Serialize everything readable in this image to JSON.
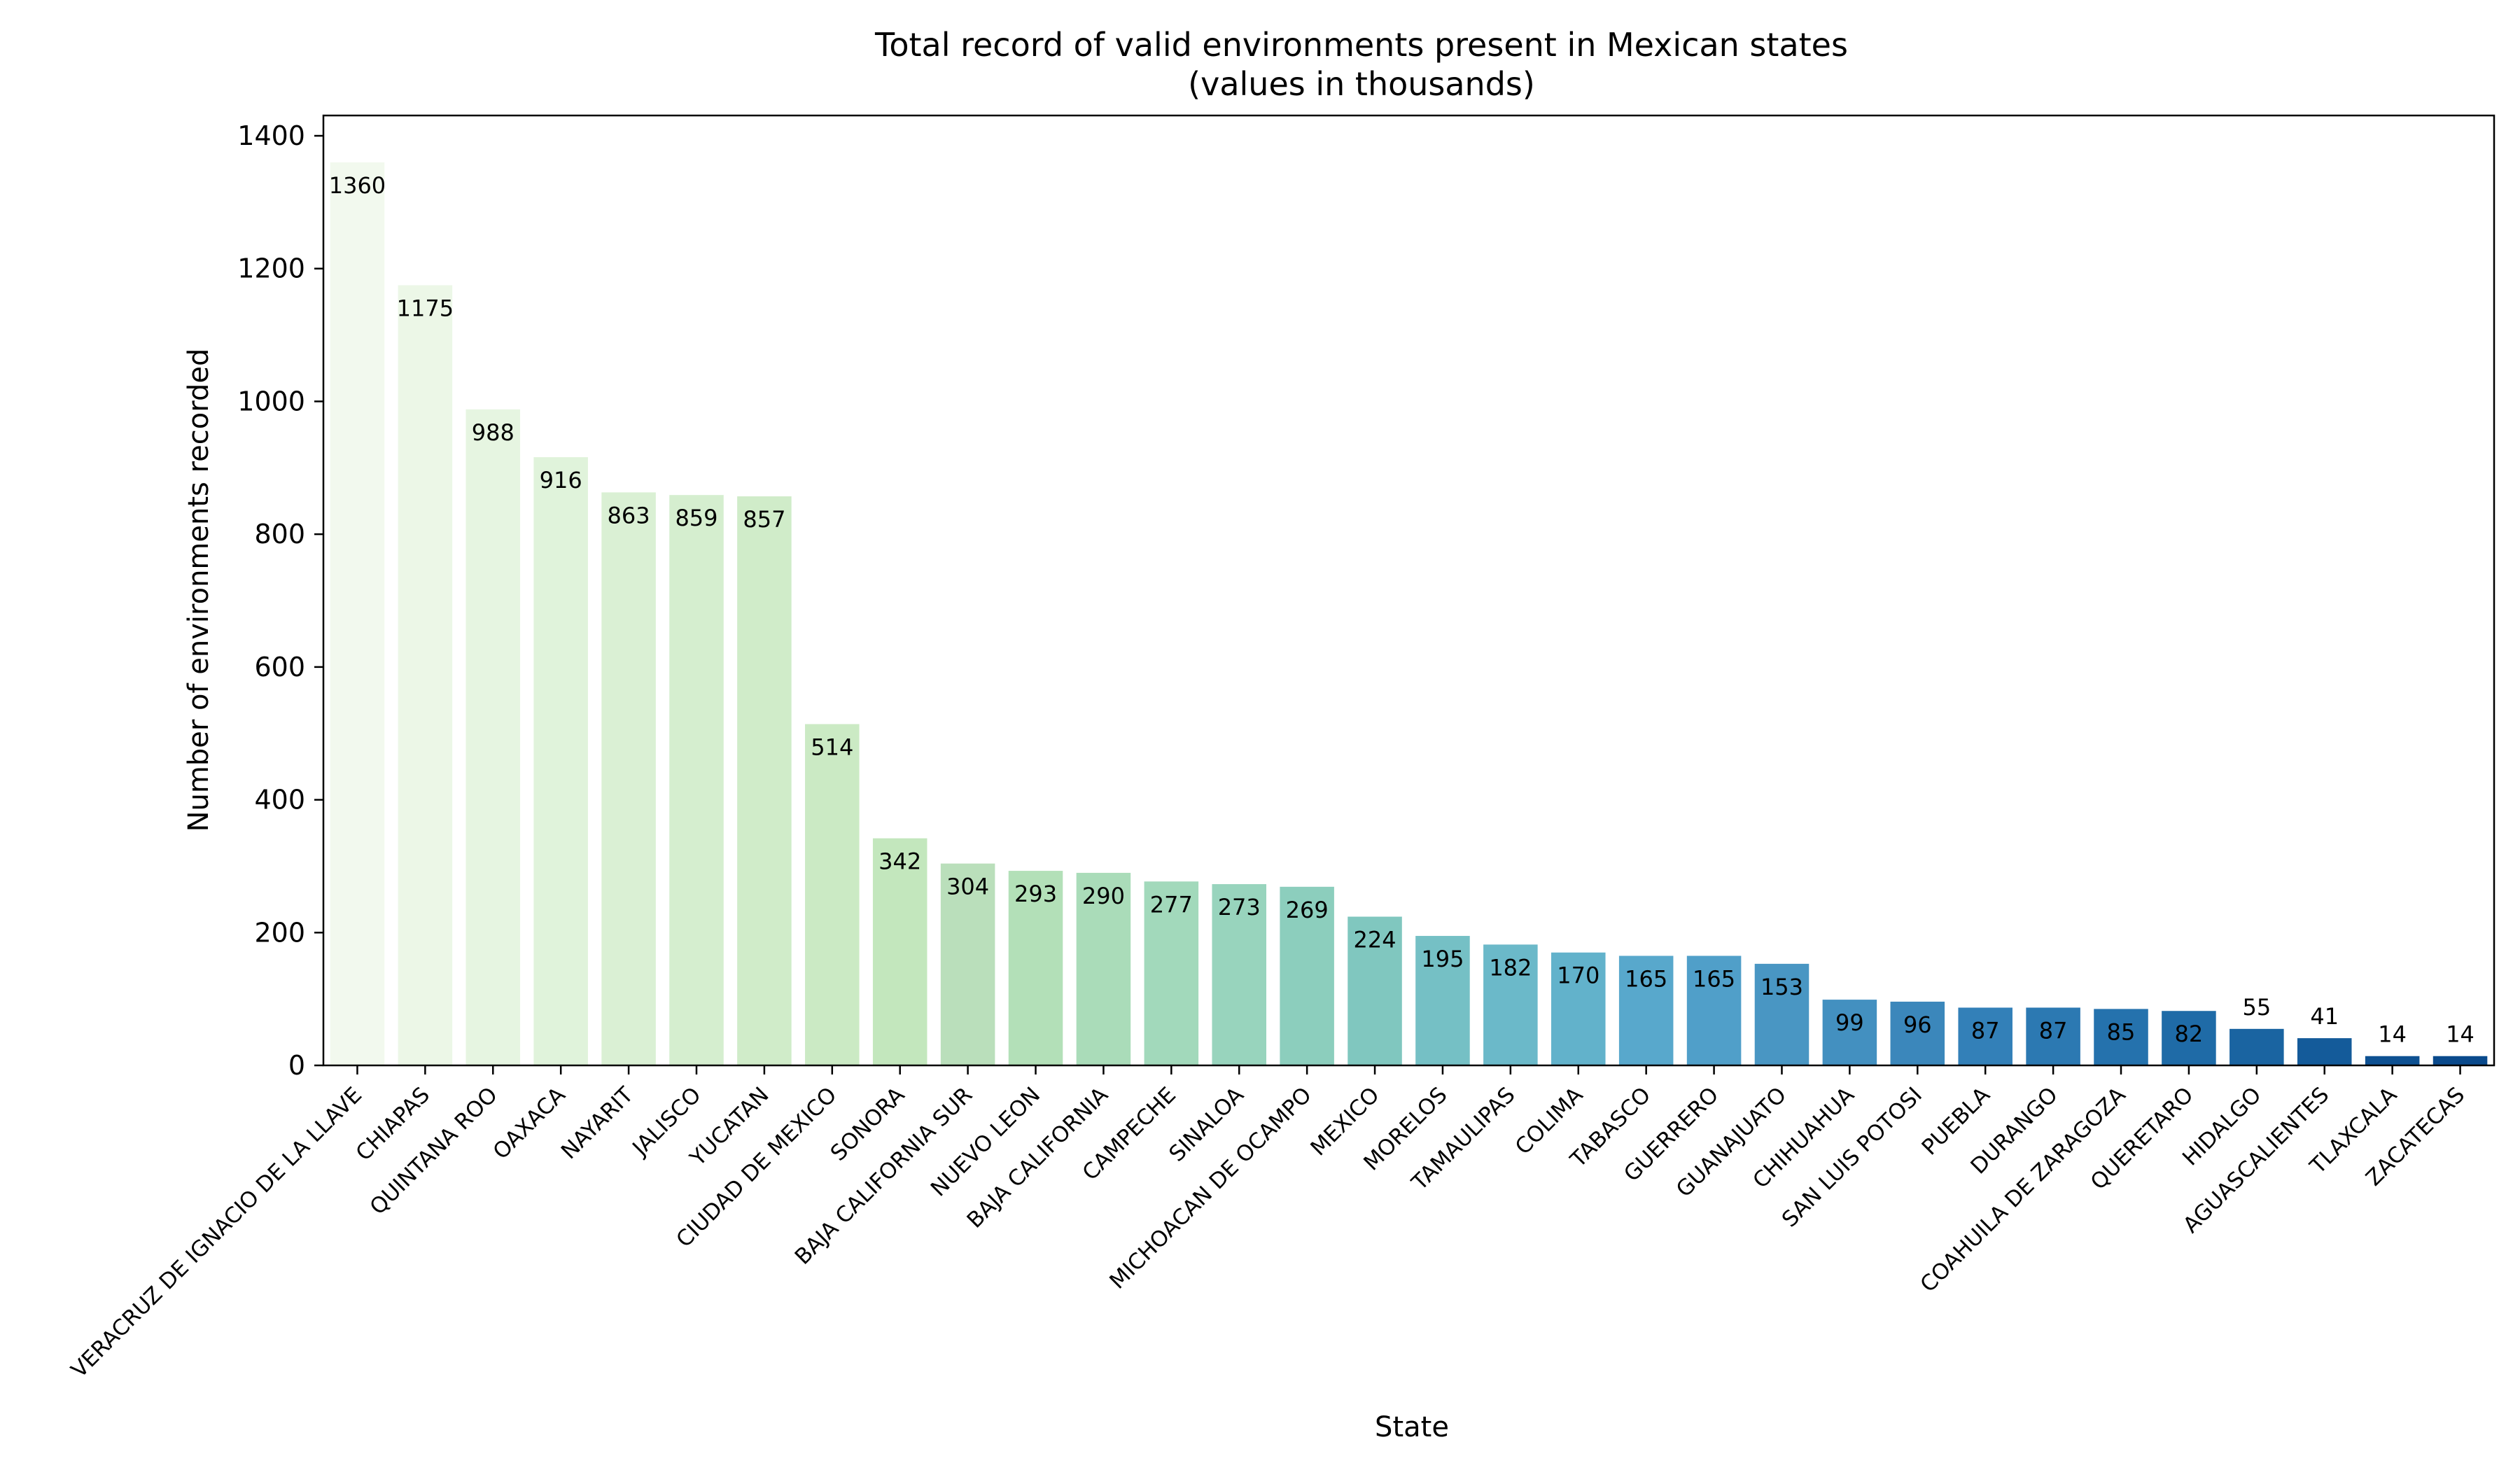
{
  "chart_data": {
    "type": "bar",
    "title": "Total record of valid environments present in Mexican states",
    "subtitle": "(values in thousands)",
    "xlabel": "State",
    "ylabel": "Number of environments recorded",
    "ylim": [
      0,
      1400
    ],
    "yticks": [
      0,
      200,
      400,
      600,
      800,
      1000,
      1200,
      1400
    ],
    "grid": false,
    "legend": "none",
    "palette": "GnBu",
    "categories": [
      "VERACRUZ DE IGNACIO DE LA LLAVE",
      "CHIAPAS",
      "QUINTANA ROO",
      "OAXACA",
      "NAYARIT",
      "JALISCO",
      "YUCATAN",
      "CIUDAD DE MEXICO",
      "SONORA",
      "BAJA CALIFORNIA SUR",
      "NUEVO LEON",
      "BAJA CALIFORNIA",
      "CAMPECHE",
      "SINALOA",
      "MICHOACAN DE OCAMPO",
      "MEXICO",
      "MORELOS",
      "TAMAULIPAS",
      "COLIMA",
      "TABASCO",
      "GUERRERO",
      "GUANAJUATO",
      "CHIHUAHUA",
      "SAN LUIS POTOSI",
      "PUEBLA",
      "DURANGO",
      "COAHUILA DE ZARAGOZA",
      "QUERETARO",
      "HIDALGO",
      "AGUASCALIENTES",
      "TLAXCALA",
      "ZACATECAS"
    ],
    "values": [
      1360,
      1175,
      988,
      916,
      863,
      859,
      857,
      514,
      342,
      304,
      293,
      290,
      277,
      273,
      269,
      224,
      195,
      182,
      170,
      165,
      165,
      153,
      99,
      96,
      87,
      87,
      85,
      82,
      55,
      41,
      14,
      14
    ],
    "data_labels": [
      "1360",
      "1175",
      "988",
      "916",
      "863",
      "859",
      "857",
      "514",
      "342",
      "304",
      "293",
      "290",
      "277",
      "273",
      "269",
      "224",
      "195",
      "182",
      "170",
      "165",
      "165",
      "153",
      "99",
      "96",
      "87",
      "87",
      "85",
      "82",
      "55",
      "41",
      "14",
      "14"
    ],
    "colors": [
      "#f2f9ee",
      "#ecf7e7",
      "#e6f5e1",
      "#e0f3db",
      "#daf0d4",
      "#d5eecf",
      "#d0ecc9",
      "#cbeac4",
      "#c3e7bd",
      "#badfbb",
      "#b3e0b8",
      "#aadcb9",
      "#a2d9bb",
      "#98d4bd",
      "#8ccebd",
      "#80c7bf",
      "#75c0c5",
      "#6bb9c9",
      "#62b2cb",
      "#58a8cc",
      "#509fc9",
      "#4996c3",
      "#4390c0",
      "#3b87bb",
      "#3380b8",
      "#2c79b2",
      "#2572ad",
      "#1f6ba7",
      "#1a64a1",
      "#145b9a",
      "#0e5192",
      "#0a4a8c"
    ]
  }
}
